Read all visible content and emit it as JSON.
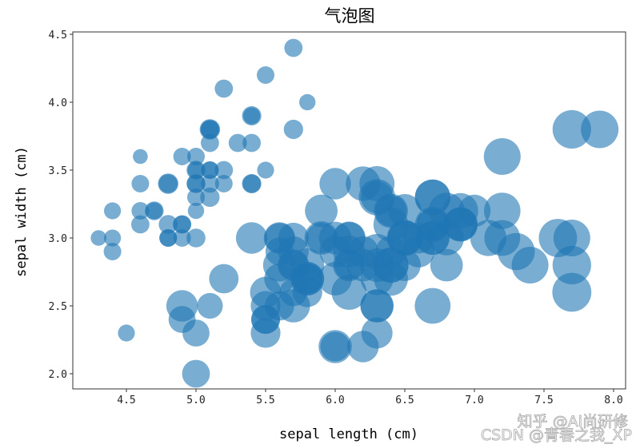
{
  "chart_data": {
    "type": "scatter",
    "subtype": "bubble",
    "title": "气泡图",
    "xlabel": "sepal length (cm)",
    "ylabel": "sepal width (cm)",
    "xlim": [
      4.18,
      8.1
    ],
    "ylim": [
      1.88,
      4.52
    ],
    "xticks": [
      4.5,
      5.0,
      5.5,
      6.0,
      6.5,
      7.0,
      7.5,
      8.0
    ],
    "xtick_labels": [
      "4.5",
      "5.0",
      "5.5",
      "6.0",
      "6.5",
      "7.0",
      "7.5",
      "8.0"
    ],
    "yticks": [
      2.0,
      2.5,
      3.0,
      3.5,
      4.0,
      4.5
    ],
    "ytick_labels": [
      "2.0",
      "2.5",
      "3.0",
      "3.5",
      "4.0",
      "4.5"
    ],
    "grid": false,
    "legend": null,
    "color": "#1f77b4",
    "alpha": 0.6,
    "size_encoding": "petal length (cm)",
    "x": [
      5.1,
      4.9,
      4.7,
      4.6,
      5.0,
      5.4,
      4.6,
      5.0,
      4.4,
      4.9,
      5.4,
      4.8,
      4.8,
      4.3,
      5.8,
      5.7,
      5.4,
      5.1,
      5.7,
      5.1,
      5.4,
      5.1,
      4.6,
      5.1,
      4.8,
      5.0,
      5.0,
      5.2,
      5.2,
      4.7,
      4.8,
      5.4,
      5.2,
      5.5,
      4.9,
      5.0,
      5.5,
      4.9,
      4.4,
      5.1,
      5.0,
      4.5,
      4.4,
      5.0,
      5.1,
      4.8,
      5.1,
      4.6,
      5.3,
      5.0,
      7.0,
      6.4,
      6.9,
      5.5,
      6.5,
      5.7,
      6.3,
      4.9,
      6.6,
      5.2,
      5.0,
      5.9,
      6.0,
      6.1,
      5.6,
      6.7,
      5.6,
      5.8,
      6.2,
      5.6,
      5.9,
      6.1,
      6.3,
      6.1,
      6.4,
      6.6,
      6.8,
      6.7,
      6.0,
      5.7,
      5.5,
      5.5,
      5.8,
      6.0,
      5.4,
      6.0,
      6.7,
      6.3,
      5.6,
      5.5,
      5.5,
      6.1,
      5.8,
      5.0,
      5.6,
      5.7,
      5.7,
      6.2,
      5.1,
      5.7,
      6.3,
      5.8,
      7.1,
      6.3,
      6.5,
      7.6,
      4.9,
      7.3,
      6.7,
      7.2,
      6.5,
      6.4,
      6.8,
      5.7,
      5.8,
      6.4,
      6.5,
      7.7,
      7.7,
      6.0,
      6.9,
      5.6,
      7.7,
      6.3,
      6.7,
      7.2,
      6.2,
      6.1,
      6.4,
      7.2,
      7.4,
      7.9,
      6.4,
      6.3,
      6.1,
      7.7,
      6.3,
      6.4,
      6.0,
      6.9,
      6.7,
      6.9,
      5.8,
      6.8,
      6.7,
      6.7,
      6.3,
      6.5,
      6.2,
      5.9
    ],
    "y": [
      3.5,
      3.0,
      3.2,
      3.1,
      3.6,
      3.9,
      3.4,
      3.4,
      2.9,
      3.1,
      3.7,
      3.4,
      3.0,
      3.0,
      4.0,
      4.4,
      3.9,
      3.5,
      3.8,
      3.8,
      3.4,
      3.7,
      3.6,
      3.3,
      3.4,
      3.0,
      3.4,
      3.5,
      3.4,
      3.2,
      3.1,
      3.4,
      4.1,
      4.2,
      3.1,
      3.2,
      3.5,
      3.6,
      3.0,
      3.4,
      3.5,
      2.3,
      3.2,
      3.5,
      3.8,
      3.0,
      3.8,
      3.2,
      3.7,
      3.3,
      3.2,
      3.2,
      3.1,
      2.3,
      2.8,
      2.8,
      3.3,
      2.4,
      2.9,
      2.7,
      2.0,
      3.0,
      2.2,
      2.9,
      2.9,
      3.1,
      3.0,
      2.7,
      2.2,
      2.5,
      3.2,
      2.8,
      2.5,
      2.8,
      2.9,
      3.0,
      2.8,
      3.0,
      2.9,
      2.6,
      2.4,
      2.4,
      2.7,
      2.7,
      3.0,
      3.4,
      3.1,
      2.3,
      3.0,
      2.5,
      2.6,
      3.0,
      2.6,
      2.3,
      2.7,
      3.0,
      2.9,
      2.9,
      2.5,
      2.8,
      3.3,
      2.7,
      3.0,
      2.9,
      3.0,
      3.0,
      2.5,
      2.9,
      2.5,
      3.6,
      3.2,
      2.7,
      3.0,
      2.5,
      2.8,
      3.2,
      3.0,
      3.8,
      2.6,
      2.2,
      3.2,
      2.8,
      2.8,
      2.7,
      3.3,
      3.2,
      2.8,
      3.0,
      2.8,
      3.0,
      2.8,
      3.8,
      2.8,
      2.8,
      2.6,
      3.0,
      3.4,
      3.1,
      3.0,
      3.1,
      3.1,
      3.1,
      2.7,
      3.2,
      3.3,
      3.0,
      2.5,
      3.0,
      3.4,
      3.0
    ],
    "size": [
      1.4,
      1.4,
      1.3,
      1.5,
      1.4,
      1.7,
      1.4,
      1.5,
      1.4,
      1.5,
      1.5,
      1.6,
      1.4,
      1.1,
      1.2,
      1.5,
      1.3,
      1.4,
      1.7,
      1.5,
      1.7,
      1.5,
      1.0,
      1.7,
      1.9,
      1.6,
      1.6,
      1.5,
      1.4,
      1.6,
      1.6,
      1.5,
      1.5,
      1.4,
      1.5,
      1.2,
      1.3,
      1.4,
      1.3,
      1.5,
      1.3,
      1.3,
      1.3,
      1.6,
      1.9,
      1.4,
      1.6,
      1.4,
      1.5,
      1.4,
      4.7,
      4.5,
      4.9,
      4.0,
      4.6,
      4.5,
      4.7,
      3.3,
      4.6,
      3.9,
      3.5,
      4.2,
      4.0,
      4.7,
      3.6,
      4.4,
      4.5,
      4.1,
      4.5,
      3.9,
      4.8,
      4.0,
      4.9,
      4.7,
      4.3,
      4.4,
      4.8,
      5.0,
      4.5,
      3.5,
      3.8,
      3.7,
      3.9,
      5.1,
      4.5,
      4.5,
      4.7,
      4.4,
      4.1,
      4.0,
      4.4,
      4.6,
      4.0,
      3.3,
      4.2,
      4.2,
      4.2,
      4.3,
      3.0,
      4.1,
      6.0,
      5.1,
      5.9,
      5.6,
      5.8,
      6.6,
      4.5,
      6.3,
      5.8,
      6.1,
      5.1,
      5.3,
      5.5,
      5.0,
      5.1,
      5.3,
      5.5,
      6.7,
      6.9,
      5.0,
      5.7,
      4.9,
      6.7,
      4.9,
      5.7,
      6.0,
      4.8,
      4.9,
      5.6,
      5.8,
      6.1,
      6.4,
      5.6,
      5.1,
      5.6,
      6.1,
      5.6,
      5.5,
      4.8,
      5.4,
      5.6,
      5.1,
      5.1,
      5.9,
      5.7,
      5.2,
      5.0,
      5.2,
      5.4,
      5.1
    ]
  },
  "watermark": {
    "line1": "知乎 @Ai尚研修",
    "line2": "CSDN @青春之我_XP"
  }
}
